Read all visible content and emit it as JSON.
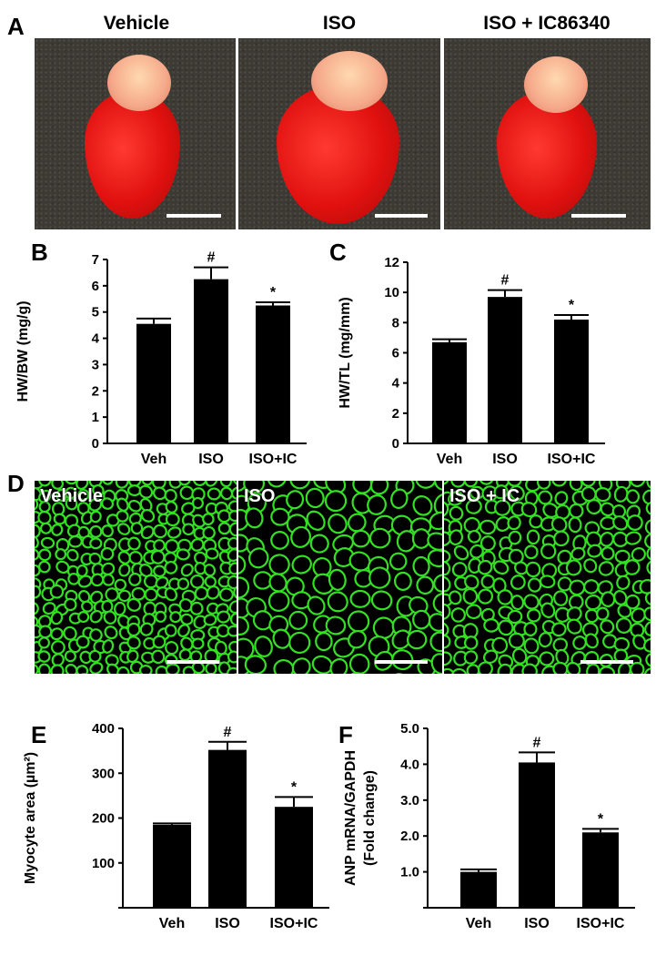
{
  "panel_A": {
    "letter": "A",
    "titles": [
      "Vehicle",
      "ISO",
      "ISO + IC86340"
    ]
  },
  "panel_D": {
    "letter": "D",
    "labels": [
      "Vehicle",
      "ISO",
      "ISO + IC"
    ]
  },
  "colors": {
    "bar": "#000000",
    "membrane": "#33e022",
    "background": "#ffffff"
  },
  "chart_data": [
    {
      "panel": "B",
      "type": "bar",
      "categories": [
        "Veh",
        "ISO",
        "ISO+IC"
      ],
      "values": [
        4.55,
        6.25,
        5.25
      ],
      "errors": [
        0.2,
        0.45,
        0.12
      ],
      "markers": [
        "",
        "#",
        "*"
      ],
      "ylabel": "HW/BW (mg/g)",
      "ylim": [
        0,
        7
      ],
      "yticks": [
        0,
        1,
        2,
        3,
        4,
        5,
        6,
        7
      ],
      "ytick_labels": [
        "0",
        "1",
        "2",
        "3",
        "4",
        "5",
        "6",
        "7"
      ]
    },
    {
      "panel": "C",
      "type": "bar",
      "categories": [
        "Veh",
        "ISO",
        "ISO+IC"
      ],
      "values": [
        6.7,
        9.7,
        8.2
      ],
      "errors": [
        0.2,
        0.45,
        0.3
      ],
      "markers": [
        "",
        "#",
        "*"
      ],
      "ylabel": "HW/TL (mg/mm)",
      "ylim": [
        0,
        12
      ],
      "yticks": [
        0,
        2,
        4,
        6,
        8,
        10,
        12
      ],
      "ytick_labels": [
        "0",
        "2",
        "4",
        "6",
        "8",
        "10",
        "12"
      ]
    },
    {
      "panel": "E",
      "type": "bar",
      "categories": [
        "Veh",
        "ISO",
        "ISO+IC"
      ],
      "values": [
        185,
        352,
        225
      ],
      "errors": [
        3,
        18,
        22
      ],
      "markers": [
        "",
        "#",
        "*"
      ],
      "ylabel": "Myocyte area (µm²)",
      "ylim": [
        0,
        400
      ],
      "yticks": [
        0,
        100,
        200,
        300,
        400
      ],
      "ytick_labels": [
        "",
        "100",
        "200",
        "300",
        "400"
      ]
    },
    {
      "panel": "F",
      "type": "bar",
      "categories": [
        "Veh",
        "ISO",
        "ISO+IC"
      ],
      "values": [
        1.0,
        4.05,
        2.1
      ],
      "errors": [
        0.07,
        0.28,
        0.1
      ],
      "markers": [
        "",
        "#",
        "*"
      ],
      "ylabel": "ANP mRNA/GAPDH",
      "ylabel2": "(Fold change)",
      "ylim": [
        0,
        5
      ],
      "yticks": [
        0,
        1,
        2,
        3,
        4,
        5
      ],
      "ytick_labels": [
        "",
        "1.0",
        "2.0",
        "3.0",
        "4.0",
        "5.0"
      ]
    }
  ]
}
